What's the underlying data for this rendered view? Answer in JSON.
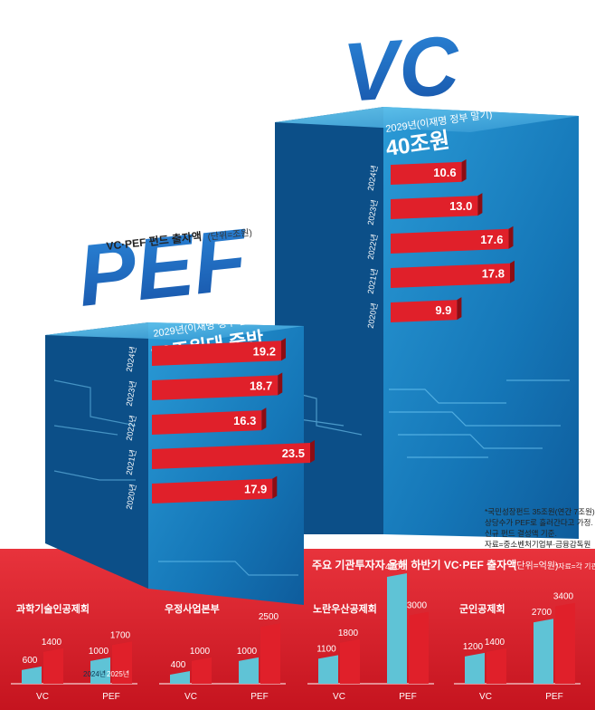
{
  "header": {
    "title": "VC·PEF 펀드 출자액",
    "unit": "(단위=조원)"
  },
  "chart_data": [
    {
      "type": "bar",
      "orientation": "horizontal",
      "name": "PEF",
      "big_label": "PEF",
      "target_year_label": "2029년(이재명 정부 말기)",
      "target_value_label": "20조원대 중반",
      "categories": [
        "2024년",
        "2023년",
        "2022년",
        "2021년",
        "2020년"
      ],
      "values": [
        19.2,
        18.7,
        16.3,
        23.5,
        17.9
      ],
      "unit": "조원",
      "color": "#e0202a"
    },
    {
      "type": "bar",
      "orientation": "horizontal",
      "name": "VC",
      "big_label": "VC",
      "target_year_label": "2029년(이재명 정부 말기)",
      "target_value_label": "40조원",
      "categories": [
        "2024년",
        "2023년",
        "2022년",
        "2021년",
        "2020년"
      ],
      "values": [
        10.6,
        13.0,
        17.6,
        17.8,
        9.9
      ],
      "unit": "조원",
      "color": "#e0202a"
    },
    {
      "type": "bar",
      "panel_title": "과학기술인공제회",
      "categories": [
        "VC",
        "PEF"
      ],
      "series": [
        {
          "name": "2024년",
          "values": [
            600,
            1000
          ]
        },
        {
          "name": "2025년",
          "values": [
            1400,
            1700
          ]
        }
      ]
    },
    {
      "type": "bar",
      "panel_title": "우정사업본부",
      "categories": [
        "VC",
        "PEF"
      ],
      "series": [
        {
          "name": "2024년",
          "values": [
            400,
            1000
          ]
        },
        {
          "name": "2025년",
          "values": [
            1000,
            2500
          ]
        }
      ]
    },
    {
      "type": "bar",
      "panel_title": "노란우산공제회",
      "categories": [
        "VC",
        "PEF"
      ],
      "series": [
        {
          "name": "2024년",
          "values": [
            1100,
            4700
          ]
        },
        {
          "name": "2025년",
          "values": [
            1800,
            3000
          ]
        }
      ]
    },
    {
      "type": "bar",
      "panel_title": "군인공제회",
      "categories": [
        "VC",
        "PEF"
      ],
      "series": [
        {
          "name": "2024년",
          "values": [
            1200,
            2700
          ]
        },
        {
          "name": "2025년",
          "values": [
            1400,
            3400
          ]
        }
      ]
    }
  ],
  "notes": [
    "*국민성장펀드 35조원(연간 7조원)",
    "상당수가 PEF로 흘러간다고 가정.",
    "신규 펀드 결성액 기준.",
    "자료=중소벤처기업부·금융감독원"
  ],
  "bottom": {
    "title": "주요 기관투자자 올해 하반기 VC·PEF 출자액",
    "unit": "(단위=억원)",
    "source": "*자료=각 기관"
  },
  "colors": {
    "cube_front": "#1577b8",
    "cube_side": "#0b4e86",
    "cube_top": "#4db4e6",
    "bar_red": "#e0202a",
    "bottom_bg": "#e31e2b",
    "bar_teal": "#5fc3d6",
    "big_letter": "#1c6fc0"
  }
}
